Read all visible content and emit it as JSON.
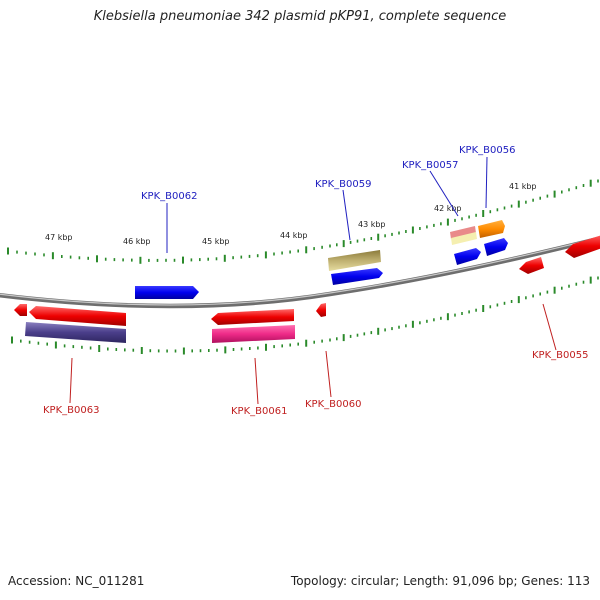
{
  "title": "Klebsiella pneumoniae 342 plasmid pKP91, complete sequence",
  "accession": "Accession: NC_011281",
  "summary": "Topology: circular; Length: 91,096 bp; Genes: 113",
  "colors": {
    "backbone": "#8a8a8a",
    "tick": "#2a8a2a",
    "top_label": "#2020c0",
    "bottom_label": "#c02020"
  },
  "kbp_labels": [
    "47 kbp",
    "46 kbp",
    "45 kbp",
    "44 kbp",
    "43 kbp",
    "42 kbp",
    "41 kbp"
  ],
  "top_gene_labels": [
    "KPK_B0062",
    "KPK_B0059",
    "KPK_B0057",
    "KPK_B0056"
  ],
  "bottom_gene_labels": [
    "KPK_B0063",
    "KPK_B0061",
    "KPK_B0060",
    "KPK_B0055"
  ]
}
